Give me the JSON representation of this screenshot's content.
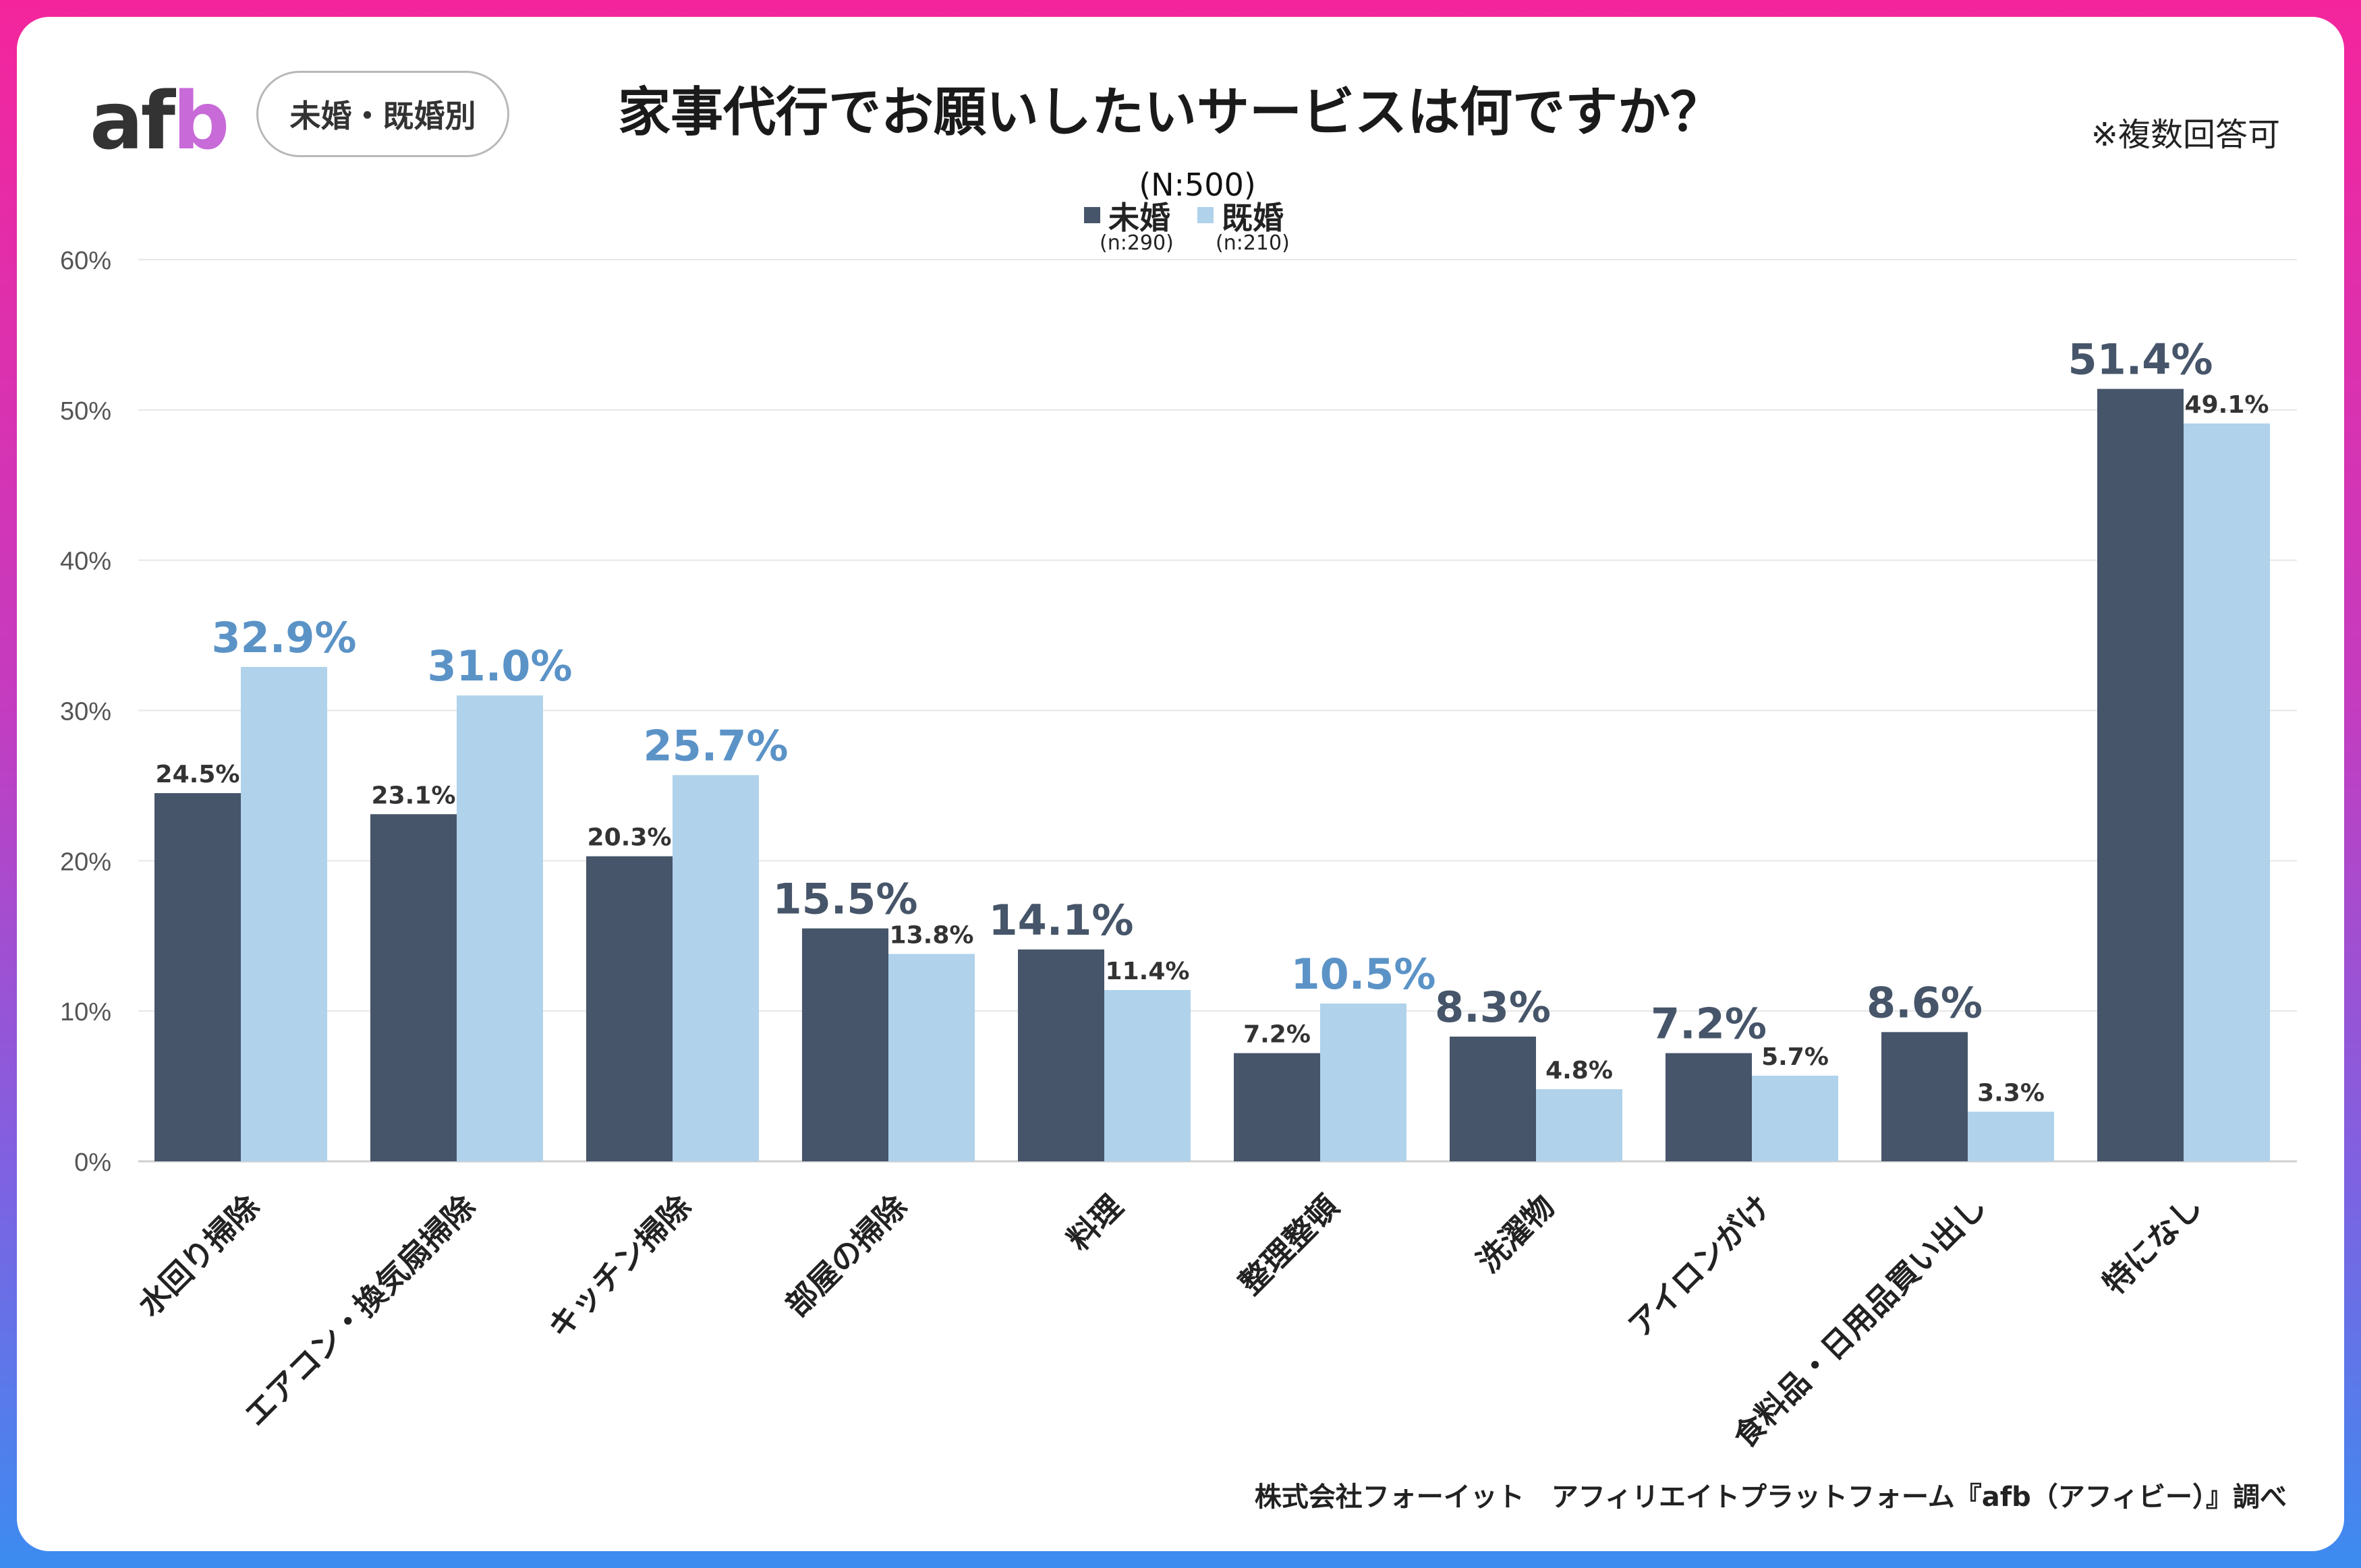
{
  "header": {
    "logo_text_a": "af",
    "logo_text_b": "b",
    "segment_label": "未婚・既婚別",
    "title": "家事代行でお願いしたいサービスは何ですか？",
    "note": "※複数回答可",
    "sample": "(N:500)"
  },
  "legend": [
    {
      "name": "未婚",
      "n": "(n:290)",
      "color": "#465569"
    },
    {
      "name": "既婚",
      "n": "(n:210)",
      "color": "#b0d2eb"
    }
  ],
  "colors": {
    "unmarried": "#465569",
    "married": "#b0d2eb",
    "highlight_unmarried": "#465569",
    "highlight_married": "#5b93c7",
    "gridline": "#e6e6e6",
    "axis_text": "#555555"
  },
  "chart_data": {
    "type": "bar",
    "title": "家事代行でお願いしたいサービスは何ですか？",
    "xlabel": "",
    "ylabel": "",
    "ylim": [
      0,
      60
    ],
    "yticks": [
      0,
      10,
      20,
      30,
      40,
      50,
      60
    ],
    "ytick_labels": [
      "0%",
      "10%",
      "20%",
      "30%",
      "40%",
      "50%",
      "60%"
    ],
    "grid": true,
    "categories": [
      "水回り掃除",
      "エアコン・換気扇掃除",
      "キッチン掃除",
      "部屋の掃除",
      "料理",
      "整理整頓",
      "洗濯物",
      "アイロンがけ",
      "食料品・日用品買い出し",
      "特になし"
    ],
    "series": [
      {
        "name": "未婚",
        "values": [
          24.5,
          23.1,
          20.3,
          15.5,
          14.1,
          7.2,
          8.3,
          7.2,
          8.6,
          51.4
        ],
        "labels": [
          "24.5%",
          "23.1%",
          "20.3%",
          "15.5%",
          "14.1%",
          "7.2%",
          "8.3%",
          "7.2%",
          "8.6%",
          "51.4%"
        ]
      },
      {
        "name": "既婚",
        "values": [
          32.9,
          31.0,
          25.7,
          13.8,
          11.4,
          10.5,
          4.8,
          5.7,
          3.3,
          49.1
        ],
        "labels": [
          "32.9%",
          "31.0%",
          "25.7%",
          "13.8%",
          "11.4%",
          "10.5%",
          "4.8%",
          "5.7%",
          "3.3%",
          "49.1%"
        ]
      }
    ]
  },
  "footer": {
    "source": "株式会社フォーイット　アフィリエイトプラットフォーム『afb（アフィビー）』調べ"
  }
}
